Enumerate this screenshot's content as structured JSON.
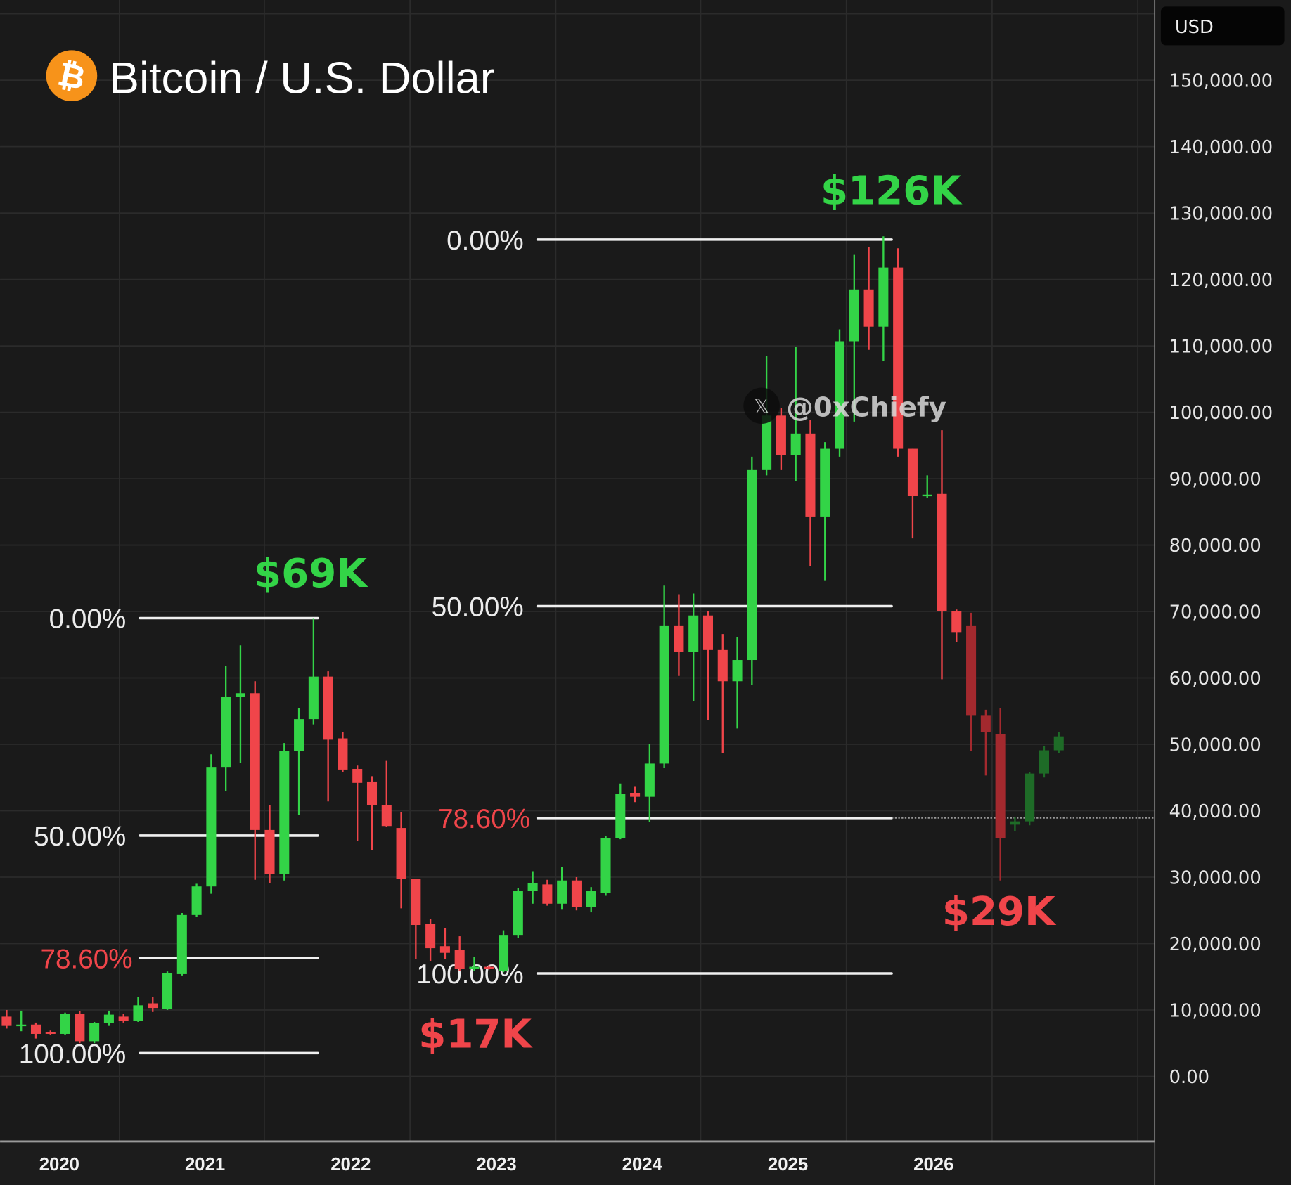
{
  "header": {
    "title": "Bitcoin / U.S. Dollar",
    "logo_icon": "bitcoin-logo-icon",
    "logo_color": "#f7931a"
  },
  "price_axis": {
    "currency_badge": "USD",
    "ticks": [
      "150,000.00",
      "140,000.00",
      "130,000.00",
      "120,000.00",
      "110,000.00",
      "100,000.00",
      "90,000.00",
      "80,000.00",
      "70,000.00",
      "60,000.00",
      "50,000.00",
      "40,000.00",
      "30,000.00",
      "20,000.00",
      "10,000.00",
      "0.00"
    ]
  },
  "time_axis": {
    "ticks": [
      "2020",
      "2021",
      "2022",
      "2023",
      "2024",
      "2025",
      "2026"
    ]
  },
  "watermark": {
    "icon": "x-logo-icon",
    "handle": "@0xChiefy"
  },
  "annotations": {
    "peak_2021": "$69K",
    "peak_2025": "$126K",
    "low_2022": "$17K",
    "low_2026": "$29K"
  },
  "colors": {
    "background": "#1a1a1a",
    "up": "#33d447",
    "down": "#f0454a",
    "up_projected": "#1e6b27",
    "down_projected": "#a3292e",
    "fib_line": "#f0f0f0",
    "fib_786_label": "#f0454a"
  },
  "chart_data": {
    "type": "candlestick",
    "title": "Bitcoin / U.S. Dollar",
    "ylabel": "USD",
    "ylim": [
      0,
      150000
    ],
    "y_scale": "linear",
    "grid": true,
    "x_tick_labels": [
      "2020",
      "2021",
      "2022",
      "2023",
      "2024",
      "2025",
      "2026"
    ],
    "candle_format": [
      "open",
      "high",
      "low",
      "close"
    ],
    "candles": [
      [
        9000,
        10000,
        7200,
        7600
      ],
      [
        7600,
        9900,
        6800,
        7800
      ],
      [
        7800,
        8100,
        5700,
        6400
      ],
      [
        6700,
        6900,
        6200,
        6400
      ],
      [
        6400,
        9600,
        6200,
        9400
      ],
      [
        9400,
        9800,
        5000,
        5300
      ],
      [
        5300,
        8200,
        5000,
        8000
      ],
      [
        8000,
        9900,
        7600,
        9300
      ],
      [
        9000,
        9400,
        8100,
        8400
      ],
      [
        8400,
        12000,
        8200,
        10700
      ],
      [
        11000,
        12000,
        9700,
        10300
      ],
      [
        10200,
        15800,
        10000,
        15500
      ],
      [
        15400,
        24600,
        15200,
        24300
      ],
      [
        24300,
        29000,
        24000,
        28600
      ],
      [
        28600,
        48500,
        27500,
        46600
      ],
      [
        46600,
        61800,
        43000,
        57200
      ],
      [
        57200,
        64900,
        47200,
        57700
      ],
      [
        57700,
        59500,
        29600,
        37100
      ],
      [
        37100,
        40900,
        29100,
        30500
      ],
      [
        30500,
        50200,
        29500,
        49000
      ],
      [
        49000,
        55500,
        39400,
        53800
      ],
      [
        53800,
        69000,
        53000,
        60200
      ],
      [
        60200,
        61000,
        41400,
        50700
      ],
      [
        50900,
        51800,
        45800,
        46200
      ],
      [
        46300,
        46800,
        35400,
        44200
      ],
      [
        44400,
        45200,
        34100,
        40800
      ],
      [
        40800,
        47500,
        37600,
        37700
      ],
      [
        37400,
        39800,
        25300,
        29700
      ],
      [
        29700,
        29700,
        17700,
        22800
      ],
      [
        23000,
        23700,
        17300,
        19300
      ],
      [
        19600,
        22300,
        17700,
        18600
      ],
      [
        19000,
        21100,
        15900,
        16200
      ],
      [
        16200,
        18000,
        15900,
        16500
      ],
      [
        16500,
        16700,
        16100,
        16200
      ],
      [
        15900,
        22000,
        15700,
        21200
      ],
      [
        21200,
        28300,
        20900,
        27900
      ],
      [
        27900,
        30900,
        26000,
        29100
      ],
      [
        28900,
        29600,
        25700,
        26000
      ],
      [
        26000,
        31500,
        25100,
        29500
      ],
      [
        29500,
        30000,
        25000,
        25500
      ],
      [
        25500,
        28500,
        24700,
        27900
      ],
      [
        27600,
        36200,
        27200,
        35900
      ],
      [
        35900,
        44100,
        35700,
        42500
      ],
      [
        42700,
        43600,
        41300,
        42100
      ],
      [
        42100,
        50000,
        38300,
        47100
      ],
      [
        47100,
        73900,
        46500,
        67900
      ],
      [
        67900,
        72600,
        60300,
        63900
      ],
      [
        63900,
        72700,
        56500,
        69400
      ],
      [
        69400,
        70100,
        53700,
        64200
      ],
      [
        64200,
        66600,
        48700,
        59500
      ],
      [
        59500,
        66200,
        52400,
        62700
      ],
      [
        62700,
        93300,
        58900,
        91400
      ],
      [
        91400,
        108500,
        90500,
        99500
      ],
      [
        99500,
        100700,
        91400,
        93600
      ],
      [
        93600,
        109800,
        89600,
        96800
      ],
      [
        96800,
        98900,
        76800,
        84300
      ],
      [
        84300,
        95500,
        74700,
        94500
      ],
      [
        94500,
        112500,
        93300,
        110700
      ],
      [
        110700,
        123700,
        98600,
        118500
      ],
      [
        118500,
        124900,
        109400,
        112900
      ],
      [
        112900,
        126500,
        107700,
        121800
      ],
      [
        121800,
        124700,
        93300,
        94500
      ],
      [
        94500,
        94500,
        81000,
        87400
      ],
      [
        87400,
        90500,
        87100,
        87600
      ],
      [
        87700,
        97300,
        59800,
        70100
      ],
      [
        70100,
        70300,
        65400,
        66900
      ],
      [
        67900,
        69800,
        49000,
        54300
      ],
      [
        54300,
        55200,
        45300,
        51800
      ],
      [
        51500,
        55500,
        29500,
        35900
      ],
      [
        37900,
        39000,
        36900,
        38400
      ],
      [
        38400,
        45800,
        37800,
        45600
      ],
      [
        45600,
        49700,
        45000,
        49100
      ],
      [
        49100,
        51800,
        48700,
        51200
      ]
    ],
    "projected_from_candle": 67,
    "fibonacci": [
      {
        "levels": [
          {
            "label": "0.00%",
            "price": 69000
          },
          {
            "label": "50.00%",
            "price": 36250
          },
          {
            "label": "78.60%",
            "price": 17800
          },
          {
            "label": "100.00%",
            "price": 3500
          }
        ]
      },
      {
        "levels": [
          {
            "label": "0.00%",
            "price": 126000
          },
          {
            "label": "50.00%",
            "price": 70800
          },
          {
            "label": "78.60%",
            "price": 38900
          },
          {
            "label": "100.00%",
            "price": 15500
          }
        ]
      }
    ],
    "dotted_line_price": 38900
  }
}
